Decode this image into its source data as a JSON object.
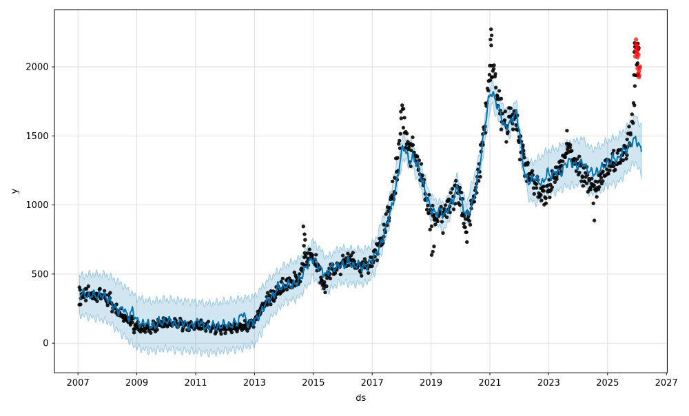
{
  "figure": {
    "background": "#ffffff"
  },
  "chart_data": {
    "type": "scatter",
    "title": "",
    "xlabel": "ds",
    "ylabel": "y",
    "xlim": [
      2006.2,
      2027.03
    ],
    "ylim": [
      -215,
      2414
    ],
    "x_ticks": [
      2007,
      2009,
      2011,
      2013,
      2015,
      2017,
      2019,
      2021,
      2023,
      2025,
      2027
    ],
    "y_ticks": [
      0,
      500,
      1000,
      1500,
      2000
    ],
    "grid": true,
    "legend": "none",
    "colors": {
      "observed": "#000000",
      "forecast_line": "#0072B2",
      "band_fill": "rgba(0,114,178,0.18)",
      "band_edge": "rgba(0,114,178,0.32)",
      "anomaly": "#ff0000",
      "grid": "#dcdcdc",
      "spine": "#000000"
    },
    "series_notes": {
      "observed": "black dots: historical daily values 2007.0-2026.06",
      "forecast": "blue line yhat with uncertainty interval, fitted 2007.05-2026.15",
      "anomalies": "red dots: values above forecast interval near 2026"
    },
    "forecast_trend": [
      [
        2007.05,
        350
      ],
      [
        2007.2,
        362
      ],
      [
        2007.35,
        330
      ],
      [
        2007.5,
        355
      ],
      [
        2007.65,
        340
      ],
      [
        2007.8,
        352
      ],
      [
        2007.95,
        330
      ],
      [
        2008.1,
        300
      ],
      [
        2008.25,
        255
      ],
      [
        2008.4,
        228
      ],
      [
        2008.55,
        262
      ],
      [
        2008.7,
        180
      ],
      [
        2008.85,
        238
      ],
      [
        2009.0,
        162
      ],
      [
        2009.15,
        132
      ],
      [
        2009.3,
        152
      ],
      [
        2009.45,
        128
      ],
      [
        2009.6,
        118
      ],
      [
        2009.75,
        158
      ],
      [
        2009.9,
        148
      ],
      [
        2010.05,
        168
      ],
      [
        2010.2,
        152
      ],
      [
        2010.35,
        128
      ],
      [
        2010.5,
        155
      ],
      [
        2010.65,
        142
      ],
      [
        2010.8,
        118
      ],
      [
        2010.95,
        142
      ],
      [
        2011.1,
        158
      ],
      [
        2011.25,
        128
      ],
      [
        2011.4,
        108
      ],
      [
        2011.55,
        132
      ],
      [
        2011.7,
        112
      ],
      [
        2011.85,
        125
      ],
      [
        2012.0,
        140
      ],
      [
        2012.15,
        118
      ],
      [
        2012.3,
        148
      ],
      [
        2012.45,
        155
      ],
      [
        2012.6,
        228
      ],
      [
        2012.75,
        142
      ],
      [
        2012.9,
        152
      ],
      [
        2013.05,
        168
      ],
      [
        2013.2,
        215
      ],
      [
        2013.35,
        278
      ],
      [
        2013.5,
        322
      ],
      [
        2013.65,
        342
      ],
      [
        2013.8,
        415
      ],
      [
        2013.95,
        398
      ],
      [
        2014.1,
        428
      ],
      [
        2014.25,
        415
      ],
      [
        2014.4,
        432
      ],
      [
        2014.55,
        462
      ],
      [
        2014.7,
        532
      ],
      [
        2014.85,
        585
      ],
      [
        2015.0,
        612
      ],
      [
        2015.15,
        565
      ],
      [
        2015.3,
        518
      ],
      [
        2015.45,
        492
      ],
      [
        2015.6,
        558
      ],
      [
        2015.75,
        538
      ],
      [
        2015.9,
        575
      ],
      [
        2016.05,
        558
      ],
      [
        2016.2,
        598
      ],
      [
        2016.35,
        552
      ],
      [
        2016.5,
        572
      ],
      [
        2016.65,
        548
      ],
      [
        2016.8,
        555
      ],
      [
        2016.95,
        592
      ],
      [
        2017.1,
        638
      ],
      [
        2017.25,
        692
      ],
      [
        2017.4,
        782
      ],
      [
        2017.55,
        905
      ],
      [
        2017.7,
        1010
      ],
      [
        2017.85,
        1180
      ],
      [
        2018.0,
        1390
      ],
      [
        2018.1,
        1422
      ],
      [
        2018.25,
        1310
      ],
      [
        2018.4,
        1345
      ],
      [
        2018.55,
        1285
      ],
      [
        2018.7,
        1175
      ],
      [
        2018.85,
        1060
      ],
      [
        2019.0,
        972
      ],
      [
        2019.15,
        938
      ],
      [
        2019.3,
        962
      ],
      [
        2019.45,
        925
      ],
      [
        2019.6,
        985
      ],
      [
        2019.75,
        1040
      ],
      [
        2019.9,
        1135
      ],
      [
        2020.05,
        1010
      ],
      [
        2020.2,
        922
      ],
      [
        2020.35,
        968
      ],
      [
        2020.5,
        1090
      ],
      [
        2020.65,
        1280
      ],
      [
        2020.8,
        1520
      ],
      [
        2020.95,
        1760
      ],
      [
        2021.05,
        1822
      ],
      [
        2021.2,
        1752
      ],
      [
        2021.35,
        1665
      ],
      [
        2021.5,
        1562
      ],
      [
        2021.65,
        1582
      ],
      [
        2021.8,
        1640
      ],
      [
        2021.9,
        1668
      ],
      [
        2022.0,
        1540
      ],
      [
        2022.1,
        1348
      ],
      [
        2022.2,
        1205
      ],
      [
        2022.35,
        1162
      ],
      [
        2022.5,
        1205
      ],
      [
        2022.65,
        1172
      ],
      [
        2022.8,
        1155
      ],
      [
        2022.95,
        1238
      ],
      [
        2023.1,
        1205
      ],
      [
        2023.25,
        1248
      ],
      [
        2023.4,
        1222
      ],
      [
        2023.55,
        1288
      ],
      [
        2023.7,
        1322
      ],
      [
        2023.85,
        1295
      ],
      [
        2024.0,
        1282
      ],
      [
        2024.15,
        1318
      ],
      [
        2024.3,
        1255
      ],
      [
        2024.45,
        1238
      ],
      [
        2024.6,
        1228
      ],
      [
        2024.75,
        1262
      ],
      [
        2024.9,
        1288
      ],
      [
        2025.05,
        1308
      ],
      [
        2025.2,
        1345
      ],
      [
        2025.35,
        1322
      ],
      [
        2025.5,
        1388
      ],
      [
        2025.65,
        1402
      ],
      [
        2025.8,
        1452
      ],
      [
        2025.95,
        1478
      ],
      [
        2026.05,
        1442
      ],
      [
        2026.15,
        1385
      ]
    ],
    "forecast_band": [
      [
        2007.05,
        205,
        485
      ],
      [
        2007.5,
        185,
        500
      ],
      [
        2008.0,
        158,
        492
      ],
      [
        2008.5,
        62,
        425
      ],
      [
        2009.0,
        -35,
        330
      ],
      [
        2009.5,
        -58,
        302
      ],
      [
        2010.0,
        -42,
        318
      ],
      [
        2010.5,
        -55,
        308
      ],
      [
        2011.0,
        -62,
        298
      ],
      [
        2011.5,
        -72,
        288
      ],
      [
        2012.0,
        -58,
        302
      ],
      [
        2012.5,
        -42,
        318
      ],
      [
        2013.0,
        -12,
        338
      ],
      [
        2013.5,
        172,
        468
      ],
      [
        2014.0,
        288,
        558
      ],
      [
        2014.5,
        328,
        608
      ],
      [
        2015.0,
        478,
        738
      ],
      [
        2015.45,
        372,
        622
      ],
      [
        2015.9,
        438,
        688
      ],
      [
        2016.35,
        428,
        678
      ],
      [
        2016.8,
        432,
        678
      ],
      [
        2017.1,
        512,
        742
      ],
      [
        2017.55,
        818,
        1022
      ],
      [
        2018.05,
        1332,
        1505
      ],
      [
        2018.4,
        1262,
        1428
      ],
      [
        2018.7,
        1092,
        1258
      ],
      [
        2019.0,
        888,
        1055
      ],
      [
        2019.45,
        812,
        1008
      ],
      [
        2019.9,
        1052,
        1218
      ],
      [
        2020.2,
        838,
        1005
      ],
      [
        2020.65,
        1195,
        1362
      ],
      [
        2021.05,
        1735,
        1902
      ],
      [
        2021.35,
        1582,
        1748
      ],
      [
        2021.65,
        1498,
        1665
      ],
      [
        2021.9,
        1585,
        1752
      ],
      [
        2022.1,
        1262,
        1438
      ],
      [
        2022.35,
        1032,
        1298
      ],
      [
        2022.65,
        1012,
        1335
      ],
      [
        2022.95,
        1085,
        1395
      ],
      [
        2023.25,
        1092,
        1408
      ],
      [
        2023.55,
        1132,
        1448
      ],
      [
        2023.85,
        1138,
        1458
      ],
      [
        2024.15,
        1158,
        1482
      ],
      [
        2024.45,
        1072,
        1405
      ],
      [
        2024.75,
        1098,
        1428
      ],
      [
        2025.05,
        1145,
        1472
      ],
      [
        2025.35,
        1158,
        1492
      ],
      [
        2025.65,
        1235,
        1568
      ],
      [
        2025.95,
        1312,
        1645
      ],
      [
        2026.15,
        1212,
        1568
      ]
    ],
    "observed_profile": [
      [
        2007.05,
        340,
        55
      ],
      [
        2007.3,
        352,
        42
      ],
      [
        2007.6,
        345,
        40
      ],
      [
        2007.9,
        338,
        45
      ],
      [
        2008.1,
        308,
        48
      ],
      [
        2008.3,
        252,
        48
      ],
      [
        2008.5,
        212,
        45
      ],
      [
        2008.7,
        172,
        42
      ],
      [
        2008.9,
        132,
        38
      ],
      [
        2009.1,
        108,
        28
      ],
      [
        2009.4,
        105,
        28
      ],
      [
        2009.7,
        128,
        32
      ],
      [
        2010.0,
        148,
        32
      ],
      [
        2010.3,
        142,
        30
      ],
      [
        2010.6,
        132,
        28
      ],
      [
        2010.9,
        122,
        28
      ],
      [
        2011.2,
        128,
        28
      ],
      [
        2011.5,
        112,
        28
      ],
      [
        2011.8,
        102,
        26
      ],
      [
        2012.1,
        108,
        26
      ],
      [
        2012.4,
        118,
        28
      ],
      [
        2012.7,
        122,
        28
      ],
      [
        2013.0,
        152,
        35
      ],
      [
        2013.3,
        262,
        52
      ],
      [
        2013.6,
        330,
        52
      ],
      [
        2013.9,
        402,
        52
      ],
      [
        2014.1,
        418,
        48
      ],
      [
        2014.3,
        448,
        55
      ],
      [
        2014.5,
        465,
        58
      ],
      [
        2014.7,
        592,
        95
      ],
      [
        2014.9,
        625,
        65
      ],
      [
        2015.1,
        585,
        58
      ],
      [
        2015.25,
        478,
        58
      ],
      [
        2015.4,
        398,
        58
      ],
      [
        2015.55,
        518,
        55
      ],
      [
        2015.7,
        528,
        48
      ],
      [
        2015.85,
        548,
        52
      ],
      [
        2016.0,
        572,
        52
      ],
      [
        2016.15,
        592,
        52
      ],
      [
        2016.3,
        608,
        48
      ],
      [
        2016.45,
        545,
        48
      ],
      [
        2016.6,
        540,
        48
      ],
      [
        2016.75,
        548,
        48
      ],
      [
        2016.9,
        558,
        52
      ],
      [
        2017.05,
        622,
        58
      ],
      [
        2017.2,
        698,
        62
      ],
      [
        2017.35,
        775,
        72
      ],
      [
        2017.5,
        878,
        85
      ],
      [
        2017.65,
        1020,
        88
      ],
      [
        2017.8,
        1190,
        110
      ],
      [
        2017.92,
        1450,
        170
      ],
      [
        2018.02,
        1720,
        160
      ],
      [
        2018.12,
        1560,
        150
      ],
      [
        2018.25,
        1340,
        110
      ],
      [
        2018.4,
        1392,
        95
      ],
      [
        2018.55,
        1302,
        88
      ],
      [
        2018.7,
        1192,
        88
      ],
      [
        2018.85,
        1072,
        82
      ],
      [
        2019.0,
        872,
        125
      ],
      [
        2019.15,
        898,
        95
      ],
      [
        2019.3,
        942,
        85
      ],
      [
        2019.45,
        905,
        95
      ],
      [
        2019.6,
        992,
        85
      ],
      [
        2019.75,
        1062,
        85
      ],
      [
        2019.9,
        1122,
        92
      ],
      [
        2020.05,
        1002,
        110
      ],
      [
        2020.2,
        822,
        95
      ],
      [
        2020.35,
        942,
        88
      ],
      [
        2020.5,
        1075,
        88
      ],
      [
        2020.65,
        1272,
        105
      ],
      [
        2020.8,
        1528,
        120
      ],
      [
        2020.92,
        1812,
        140
      ],
      [
        2021.02,
        2020,
        160
      ],
      [
        2021.12,
        1952,
        130
      ],
      [
        2021.25,
        1802,
        115
      ],
      [
        2021.4,
        1658,
        100
      ],
      [
        2021.55,
        1562,
        95
      ],
      [
        2021.7,
        1622,
        100
      ],
      [
        2021.85,
        1672,
        110
      ],
      [
        2021.97,
        1542,
        160
      ],
      [
        2022.1,
        1382,
        115
      ],
      [
        2022.25,
        1262,
        98
      ],
      [
        2022.4,
        1192,
        88
      ],
      [
        2022.55,
        1152,
        85
      ],
      [
        2022.7,
        1108,
        85
      ],
      [
        2022.85,
        1072,
        85
      ],
      [
        2023.0,
        1118,
        85
      ],
      [
        2023.15,
        1188,
        78
      ],
      [
        2023.3,
        1248,
        75
      ],
      [
        2023.45,
        1305,
        75
      ],
      [
        2023.6,
        1418,
        85
      ],
      [
        2023.75,
        1412,
        85
      ],
      [
        2023.9,
        1312,
        85
      ],
      [
        2024.05,
        1282,
        85
      ],
      [
        2024.2,
        1212,
        85
      ],
      [
        2024.35,
        1162,
        85
      ],
      [
        2024.5,
        1092,
        95
      ],
      [
        2024.65,
        1122,
        85
      ],
      [
        2024.8,
        1202,
        78
      ],
      [
        2024.95,
        1248,
        75
      ],
      [
        2025.1,
        1288,
        75
      ],
      [
        2025.25,
        1312,
        75
      ],
      [
        2025.4,
        1348,
        72
      ],
      [
        2025.55,
        1388,
        72
      ],
      [
        2025.7,
        1442,
        78
      ],
      [
        2025.82,
        1562,
        110
      ],
      [
        2025.9,
        1795,
        140
      ],
      [
        2025.98,
        1998,
        105
      ],
      [
        2026.06,
        2082,
        70
      ]
    ],
    "observed_outliers": [
      [
        2007.05,
        404
      ],
      [
        2014.66,
        845
      ],
      [
        2014.7,
        788
      ],
      [
        2014.72,
        748
      ],
      [
        2014.68,
        705
      ],
      [
        2019.02,
        638
      ],
      [
        2019.06,
        662
      ],
      [
        2019.1,
        700
      ],
      [
        2020.22,
        732
      ],
      [
        2021.02,
        2198
      ],
      [
        2021.04,
        2272
      ],
      [
        2021.06,
        2228
      ],
      [
        2023.62,
        1538
      ],
      [
        2024.55,
        888
      ],
      [
        2025.91,
        2108
      ],
      [
        2025.92,
        2172
      ],
      [
        2025.93,
        2145
      ],
      [
        2026.03,
        2168
      ],
      [
        2026.05,
        2128
      ]
    ],
    "anomalies": [
      [
        2025.94,
        2075
      ],
      [
        2025.95,
        2120
      ],
      [
        2025.96,
        2165
      ],
      [
        2025.97,
        2198
      ],
      [
        2025.98,
        2140
      ],
      [
        2025.99,
        2095
      ],
      [
        2026.0,
        2155
      ],
      [
        2026.01,
        2110
      ],
      [
        2026.02,
        2068
      ],
      [
        2026.03,
        2132
      ],
      [
        2026.05,
        2088
      ],
      [
        2026.02,
        1988
      ],
      [
        2026.04,
        1952
      ],
      [
        2026.06,
        1925
      ],
      [
        2026.07,
        1968
      ],
      [
        2026.08,
        1938
      ],
      [
        2026.09,
        1990
      ],
      [
        2026.1,
        2002
      ]
    ]
  }
}
